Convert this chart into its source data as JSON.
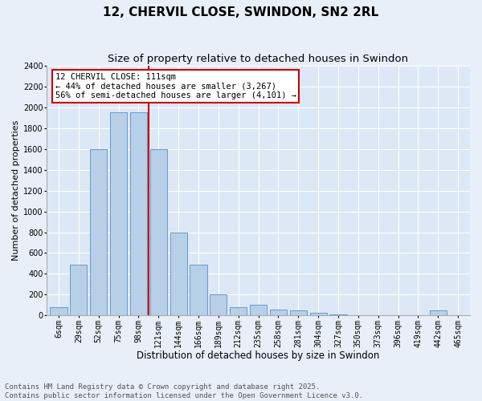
{
  "title": "12, CHERVIL CLOSE, SWINDON, SN2 2RL",
  "subtitle": "Size of property relative to detached houses in Swindon",
  "xlabel": "Distribution of detached houses by size in Swindon",
  "ylabel": "Number of detached properties",
  "categories": [
    "6sqm",
    "29sqm",
    "52sqm",
    "75sqm",
    "98sqm",
    "121sqm",
    "144sqm",
    "166sqm",
    "189sqm",
    "212sqm",
    "235sqm",
    "258sqm",
    "281sqm",
    "304sqm",
    "327sqm",
    "350sqm",
    "373sqm",
    "396sqm",
    "419sqm",
    "442sqm",
    "465sqm"
  ],
  "values": [
    80,
    490,
    1600,
    1950,
    1950,
    1600,
    800,
    490,
    200,
    80,
    100,
    60,
    50,
    30,
    10,
    5,
    5,
    5,
    5,
    50,
    5
  ],
  "bar_color": "#b8cfe8",
  "bar_edgecolor": "#6699cc",
  "vline_color": "#cc0000",
  "vline_index": 4.5,
  "annotation_text": "12 CHERVIL CLOSE: 111sqm\n← 44% of detached houses are smaller (3,267)\n56% of semi-detached houses are larger (4,101) →",
  "annotation_box_facecolor": "#ffffff",
  "annotation_box_edgecolor": "#cc0000",
  "ylim": [
    0,
    2400
  ],
  "yticks": [
    0,
    200,
    400,
    600,
    800,
    1000,
    1200,
    1400,
    1600,
    1800,
    2000,
    2200,
    2400
  ],
  "background_color": "#e8eff8",
  "axes_background": "#dce8f5",
  "footer": "Contains HM Land Registry data © Crown copyright and database right 2025.\nContains public sector information licensed under the Open Government Licence v3.0.",
  "title_fontsize": 11,
  "subtitle_fontsize": 9.5,
  "xlabel_fontsize": 8.5,
  "ylabel_fontsize": 8,
  "tick_fontsize": 7,
  "footer_fontsize": 6.5,
  "annotation_fontsize": 7.5
}
